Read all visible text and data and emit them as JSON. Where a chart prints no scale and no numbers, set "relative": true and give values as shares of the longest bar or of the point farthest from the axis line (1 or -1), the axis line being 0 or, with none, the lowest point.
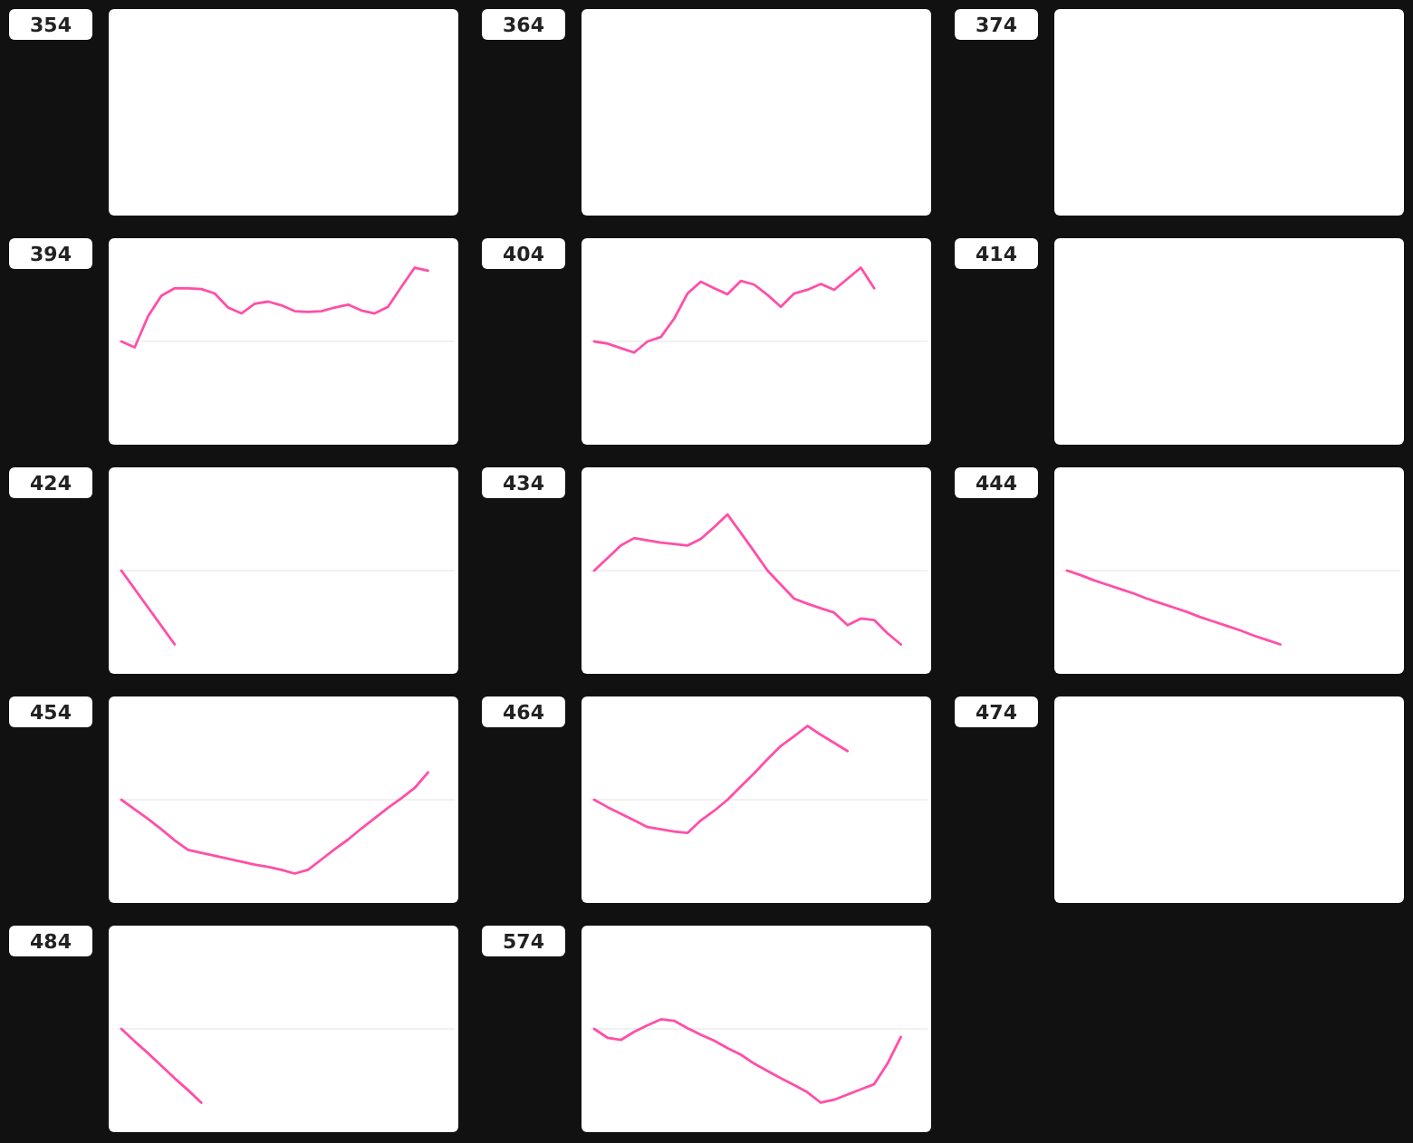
{
  "chart_data": [
    {
      "type": "other",
      "title": "354"
    },
    {
      "type": "other",
      "title": "364"
    },
    {
      "type": "other",
      "title": "374"
    },
    {
      "type": "line",
      "title": "394",
      "relative": true,
      "categories": [
        null,
        null,
        null,
        null,
        null,
        null,
        null,
        null,
        null,
        null,
        null,
        null,
        null,
        null,
        null,
        null,
        null,
        null,
        null,
        null,
        null,
        null,
        null,
        null,
        null,
        null
      ],
      "values": [
        0,
        -0.08,
        0.34,
        0.62,
        0.72,
        0.72,
        0.71,
        0.65,
        0.46,
        0.38,
        0.51,
        0.54,
        0.49,
        0.41,
        0.4,
        0.41,
        0.46,
        0.5,
        0.42,
        0.38,
        0.47,
        0.74,
        1.0,
        0.96,
        null,
        null
      ],
      "color": "#ff4fa8"
    },
    {
      "type": "line",
      "title": "404",
      "relative": true,
      "categories": [
        null,
        null,
        null,
        null,
        null,
        null,
        null,
        null,
        null,
        null,
        null,
        null,
        null,
        null,
        null,
        null,
        null,
        null,
        null,
        null,
        null,
        null,
        null,
        null,
        null,
        null
      ],
      "values": [
        0,
        -0.03,
        -0.09,
        -0.15,
        0.0,
        0.06,
        0.31,
        0.65,
        0.81,
        0.72,
        0.64,
        0.82,
        0.77,
        0.63,
        0.47,
        0.65,
        0.7,
        0.78,
        0.7,
        0.85,
        1.0,
        0.72,
        null,
        null,
        null,
        null
      ],
      "color": "#ff4fa8"
    },
    {
      "type": "other",
      "title": "414"
    },
    {
      "type": "line",
      "title": "424",
      "relative": true,
      "categories": [
        null,
        null,
        null,
        null,
        null,
        null,
        null,
        null,
        null,
        null,
        null,
        null,
        null,
        null,
        null,
        null,
        null,
        null,
        null,
        null,
        null,
        null,
        null,
        null,
        null,
        null
      ],
      "values": [
        0,
        -0.25,
        -0.5,
        -0.75,
        -1.0,
        null,
        null,
        null,
        null,
        null,
        null,
        null,
        null,
        null,
        null,
        null,
        null,
        null,
        null,
        null,
        null,
        null,
        null,
        null,
        null,
        null
      ],
      "color": "#ff4fa8"
    },
    {
      "type": "line",
      "title": "434",
      "relative": true,
      "categories": [
        null,
        null,
        null,
        null,
        null,
        null,
        null,
        null,
        null,
        null,
        null,
        null,
        null,
        null,
        null,
        null,
        null,
        null,
        null,
        null,
        null,
        null,
        null,
        null,
        null,
        null
      ],
      "values": [
        0,
        0.17,
        0.34,
        0.44,
        0.41,
        0.38,
        0.36,
        0.34,
        0.43,
        0.59,
        0.76,
        0.51,
        0.26,
        0.0,
        -0.19,
        -0.38,
        -0.45,
        -0.51,
        -0.57,
        -0.74,
        -0.65,
        -0.67,
        -0.85,
        -1.0,
        null,
        null
      ],
      "color": "#ff4fa8"
    },
    {
      "type": "line",
      "title": "444",
      "relative": true,
      "categories": [
        null,
        null,
        null,
        null,
        null,
        null,
        null,
        null,
        null,
        null,
        null,
        null,
        null,
        null,
        null,
        null,
        null,
        null,
        null,
        null,
        null,
        null,
        null,
        null,
        null,
        null
      ],
      "values": [
        0,
        -0.06,
        -0.13,
        -0.19,
        -0.25,
        -0.31,
        -0.38,
        -0.44,
        -0.5,
        -0.56,
        -0.63,
        -0.69,
        -0.75,
        -0.81,
        -0.88,
        -0.94,
        -1.0,
        null,
        null,
        null,
        null,
        null,
        null,
        null,
        null,
        null
      ],
      "color": "#ff4fa8"
    },
    {
      "type": "line",
      "title": "454",
      "relative": true,
      "categories": [
        null,
        null,
        null,
        null,
        null,
        null,
        null,
        null,
        null,
        null,
        null,
        null,
        null,
        null,
        null,
        null,
        null,
        null,
        null,
        null,
        null,
        null,
        null,
        null,
        null,
        null
      ],
      "values": [
        0,
        -0.13,
        -0.26,
        -0.4,
        -0.55,
        -0.68,
        -0.72,
        -0.76,
        -0.8,
        -0.84,
        -0.88,
        -0.91,
        -0.95,
        -1.0,
        -0.95,
        -0.81,
        -0.67,
        -0.54,
        -0.39,
        -0.25,
        -0.11,
        0.02,
        0.16,
        0.37,
        null,
        null
      ],
      "color": "#ff4fa8"
    },
    {
      "type": "line",
      "title": "464",
      "relative": true,
      "categories": [
        null,
        null,
        null,
        null,
        null,
        null,
        null,
        null,
        null,
        null,
        null,
        null,
        null,
        null,
        null,
        null,
        null,
        null,
        null,
        null,
        null,
        null,
        null,
        null,
        null,
        null
      ],
      "values": [
        0,
        -0.1,
        -0.19,
        -0.28,
        -0.37,
        -0.4,
        -0.43,
        -0.45,
        -0.28,
        -0.15,
        0.0,
        0.18,
        0.36,
        0.55,
        0.73,
        0.86,
        1.0,
        0.88,
        0.77,
        0.66,
        null,
        null,
        null,
        null,
        null,
        null
      ],
      "color": "#ff4fa8"
    },
    {
      "type": "other",
      "title": "474"
    },
    {
      "type": "line",
      "title": "484",
      "relative": true,
      "categories": [
        null,
        null,
        null,
        null,
        null,
        null,
        null,
        null,
        null,
        null,
        null,
        null,
        null,
        null,
        null,
        null,
        null,
        null,
        null,
        null,
        null,
        null,
        null,
        null,
        null,
        null
      ],
      "values": [
        0,
        -0.17,
        -0.33,
        -0.5,
        -0.67,
        -0.83,
        -1.0,
        null,
        null,
        null,
        null,
        null,
        null,
        null,
        null,
        null,
        null,
        null,
        null,
        null,
        null,
        null,
        null,
        null,
        null,
        null
      ],
      "color": "#ff4fa8"
    },
    {
      "type": "line",
      "title": "574",
      "relative": true,
      "categories": [
        null,
        null,
        null,
        null,
        null,
        null,
        null,
        null,
        null,
        null,
        null,
        null,
        null,
        null,
        null,
        null,
        null,
        null,
        null,
        null,
        null,
        null,
        null,
        null,
        null,
        null
      ],
      "values": [
        0,
        -0.12,
        -0.15,
        -0.04,
        0.05,
        0.13,
        0.11,
        0.01,
        -0.08,
        -0.16,
        -0.26,
        -0.35,
        -0.47,
        -0.57,
        -0.67,
        -0.76,
        -0.86,
        -1.0,
        -0.96,
        -0.89,
        -0.82,
        -0.75,
        -0.47,
        -0.11,
        null,
        null
      ],
      "color": "#ff4fa8"
    }
  ]
}
